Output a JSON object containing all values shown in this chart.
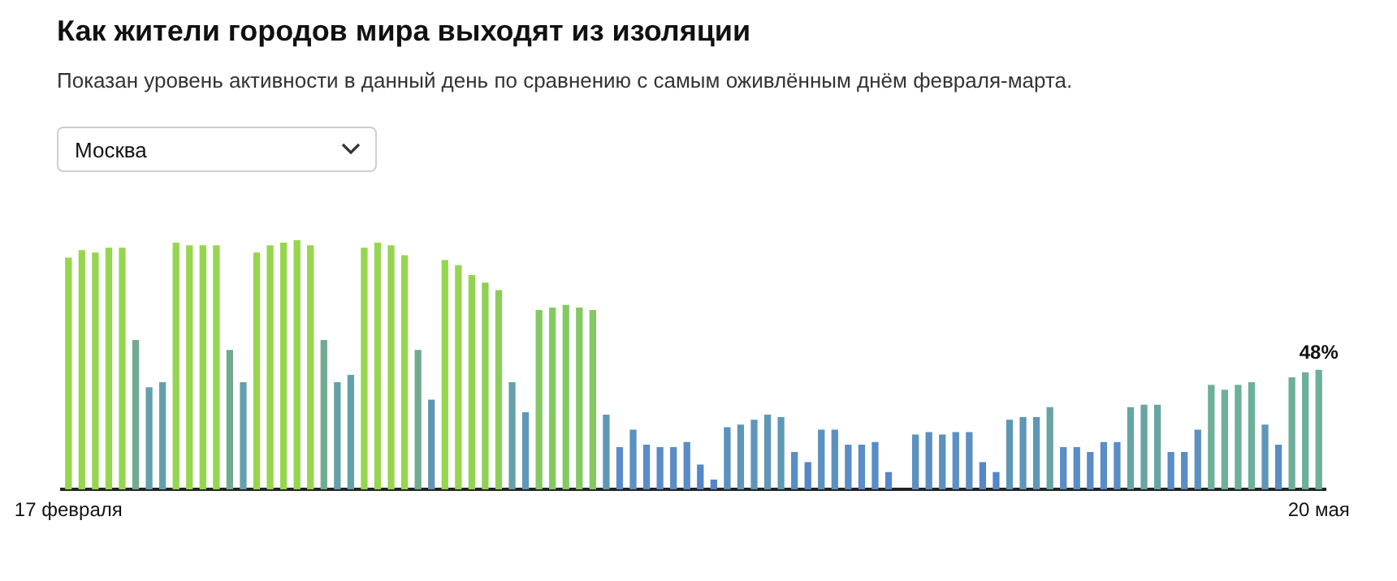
{
  "chart_data": {
    "type": "bar",
    "title": "Как жители городов мира выходят из изоляции",
    "subtitle": "Показан уровень активности в данный день по сравнению с самым оживлённым днём февраля-марта.",
    "annotations": [
      "Москва"
    ],
    "ylim": [
      0,
      100
    ],
    "tick_labels": "x",
    "legend": false,
    "grid": false,
    "categories": [
      "17 февраля",
      null,
      null,
      null,
      null,
      null,
      null,
      null,
      null,
      null,
      null,
      null,
      null,
      null,
      null,
      null,
      null,
      null,
      null,
      null,
      null,
      null,
      null,
      null,
      null,
      null,
      null,
      null,
      null,
      null,
      null,
      null,
      null,
      null,
      null,
      null,
      null,
      null,
      null,
      null,
      null,
      null,
      null,
      null,
      null,
      null,
      null,
      null,
      null,
      null,
      null,
      null,
      null,
      null,
      null,
      null,
      null,
      null,
      null,
      null,
      null,
      null,
      null,
      null,
      null,
      null,
      null,
      null,
      null,
      null,
      null,
      null,
      null,
      null,
      null,
      null,
      null,
      null,
      null,
      null,
      null,
      null,
      null,
      null,
      null,
      null,
      null,
      null,
      null,
      null,
      null,
      null,
      null,
      "20 мая"
    ],
    "values": [
      93,
      96,
      95,
      97,
      97,
      60,
      41,
      43,
      99,
      98,
      98,
      98,
      56,
      43,
      95,
      98,
      99,
      100,
      98,
      60,
      43,
      46,
      97,
      99,
      98,
      94,
      56,
      36,
      92,
      90,
      86,
      83,
      80,
      43,
      31,
      72,
      73,
      74,
      73,
      72,
      30,
      17,
      24,
      18,
      17,
      17,
      19,
      10,
      4,
      25,
      26,
      28,
      30,
      29,
      15,
      11,
      24,
      24,
      18,
      18,
      19,
      7,
      null,
      22,
      23,
      22,
      23,
      23,
      11,
      7,
      28,
      29,
      29,
      33,
      17,
      17,
      15,
      19,
      19,
      33,
      34,
      34,
      15,
      15,
      24,
      42,
      40,
      42,
      43,
      26,
      18,
      45,
      47,
      48
    ],
    "colors": [
      "#96d64e",
      "#96d64e",
      "#96d64e",
      "#96d64e",
      "#96d64e",
      "#70ab90",
      "#64a0ac",
      "#64a0ac",
      "#96d64e",
      "#96d64e",
      "#96d64e",
      "#96d64e",
      "#70ab90",
      "#64a0ac",
      "#96d64e",
      "#96d64e",
      "#96d64e",
      "#96d64e",
      "#96d64e",
      "#70ab90",
      "#64a0ac",
      "#64a0ac",
      "#96d64e",
      "#96d64e",
      "#96d64e",
      "#96d64e",
      "#70ab90",
      "#6096b4",
      "#96d64e",
      "#96d64e",
      "#92d452",
      "#8ecf56",
      "#8ccd5a",
      "#64a0ac",
      "#5f98b6",
      "#84c862",
      "#84c862",
      "#84c862",
      "#84c862",
      "#84c862",
      "#5f98b6",
      "#5a8cc6",
      "#5b90c0",
      "#5a8cc6",
      "#5a8cc6",
      "#5a8cc6",
      "#5a8cc6",
      "#5685c8",
      "#5685c8",
      "#5b90c0",
      "#5e96b8",
      "#5e96b8",
      "#5f98b6",
      "#5f98b6",
      "#5a8cc6",
      "#5685c8",
      "#5b90c0",
      "#5b90c0",
      "#5a8cc6",
      "#5a8cc6",
      "#5a8cc6",
      "#5685c8",
      "#5685c8",
      "#5b90c0",
      "#5b90c0",
      "#5b90c0",
      "#5b90c0",
      "#5b90c0",
      "#5685c8",
      "#5685c8",
      "#5e96b8",
      "#5e96b8",
      "#5e96b8",
      "#68a4a4",
      "#5a8cc6",
      "#5a8cc6",
      "#5a8cc6",
      "#5a8cc6",
      "#5a8cc6",
      "#68a4a4",
      "#68a4a4",
      "#68a4a4",
      "#5a8cc6",
      "#5a8cc6",
      "#5b90c0",
      "#6cb09a",
      "#6cb09a",
      "#6cb09a",
      "#6cb09a",
      "#5e96b8",
      "#5a8cc6",
      "#6cb09a",
      "#6cb09a",
      "#6cb09a"
    ],
    "value_labels": [
      null,
      null,
      null,
      null,
      null,
      null,
      null,
      null,
      null,
      null,
      null,
      null,
      null,
      null,
      null,
      null,
      null,
      null,
      null,
      null,
      null,
      null,
      null,
      null,
      null,
      null,
      null,
      null,
      null,
      null,
      null,
      null,
      null,
      null,
      null,
      null,
      null,
      null,
      null,
      null,
      null,
      null,
      null,
      null,
      null,
      null,
      null,
      null,
      null,
      null,
      null,
      null,
      null,
      null,
      null,
      null,
      null,
      null,
      null,
      null,
      null,
      null,
      null,
      null,
      null,
      null,
      null,
      null,
      null,
      null,
      null,
      null,
      null,
      null,
      null,
      null,
      null,
      null,
      null,
      null,
      null,
      null,
      null,
      null,
      null,
      null,
      null,
      null,
      null,
      null,
      null,
      null,
      null,
      "48%"
    ]
  }
}
